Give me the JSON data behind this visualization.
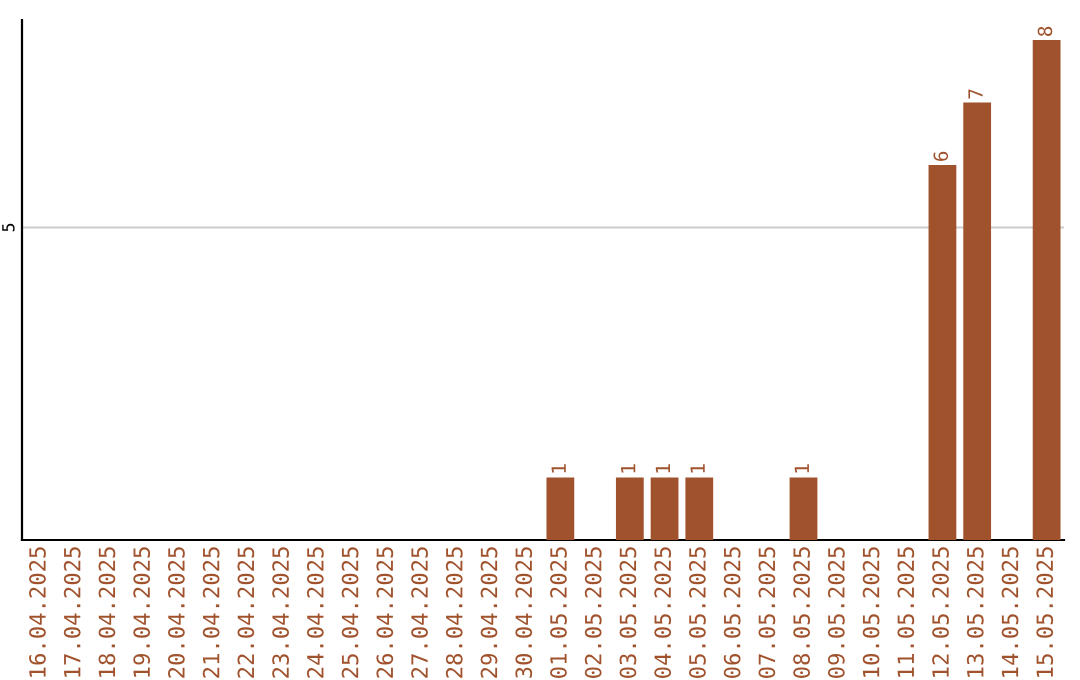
{
  "chart_data": {
    "type": "bar",
    "categories": [
      "16.04.2025",
      "17.04.2025",
      "18.04.2025",
      "19.04.2025",
      "20.04.2025",
      "21.04.2025",
      "22.04.2025",
      "23.04.2025",
      "24.04.2025",
      "25.04.2025",
      "26.04.2025",
      "27.04.2025",
      "28.04.2025",
      "29.04.2025",
      "30.04.2025",
      "01.05.2025",
      "02.05.2025",
      "03.05.2025",
      "04.05.2025",
      "05.05.2025",
      "06.05.2025",
      "07.05.2025",
      "08.05.2025",
      "09.05.2025",
      "10.05.2025",
      "11.05.2025",
      "12.05.2025",
      "13.05.2025",
      "14.05.2025",
      "15.05.2025"
    ],
    "values": [
      null,
      null,
      null,
      null,
      null,
      null,
      null,
      null,
      null,
      null,
      null,
      null,
      null,
      null,
      null,
      1,
      null,
      1,
      1,
      1,
      null,
      null,
      1,
      null,
      null,
      null,
      6,
      7,
      null,
      8
    ],
    "data_labels": true,
    "color": "#a0522d",
    "ref_lines": [
      {
        "axis": "y",
        "value": 5,
        "label": "5",
        "color": "#cccccc"
      }
    ]
  }
}
